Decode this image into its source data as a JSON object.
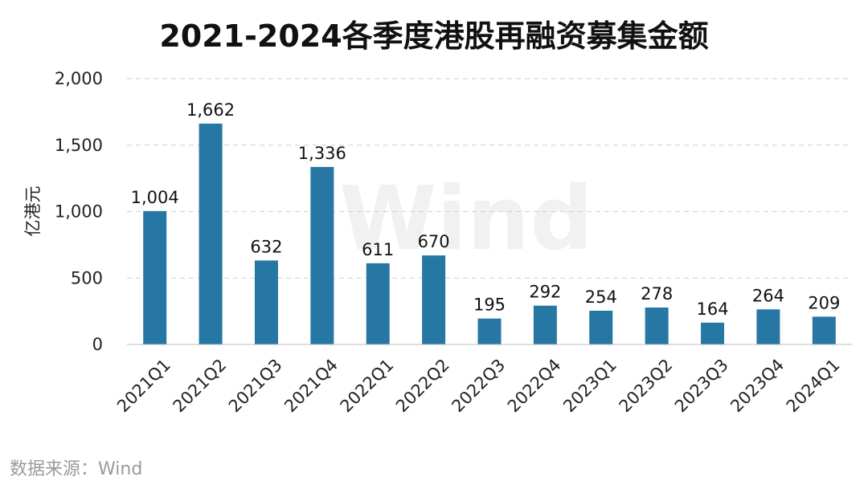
{
  "chart_data": {
    "type": "bar",
    "title": "2021-2024各季度港股再融资募集金额",
    "ylabel": "亿港元",
    "xlabel": "",
    "categories": [
      "2021Q1",
      "2021Q2",
      "2021Q3",
      "2021Q4",
      "2022Q1",
      "2022Q2",
      "2022Q3",
      "2022Q4",
      "2023Q1",
      "2023Q2",
      "2023Q3",
      "2023Q4",
      "2024Q1"
    ],
    "values": [
      1004,
      1662,
      632,
      1336,
      611,
      670,
      195,
      292,
      254,
      278,
      164,
      264,
      209
    ],
    "value_labels": [
      "1,004",
      "1,662",
      "632",
      "1,336",
      "611",
      "670",
      "195",
      "292",
      "254",
      "278",
      "164",
      "264",
      "209"
    ],
    "ylim": [
      0,
      2000
    ],
    "yticks": [
      0,
      500,
      1000,
      1500,
      2000
    ],
    "ytick_labels": [
      "0",
      "500",
      "1,000",
      "1,500",
      "2,000"
    ],
    "grid": true,
    "bar_color": "#2777a5",
    "watermark": "Wind"
  },
  "source": "数据来源：Wind"
}
